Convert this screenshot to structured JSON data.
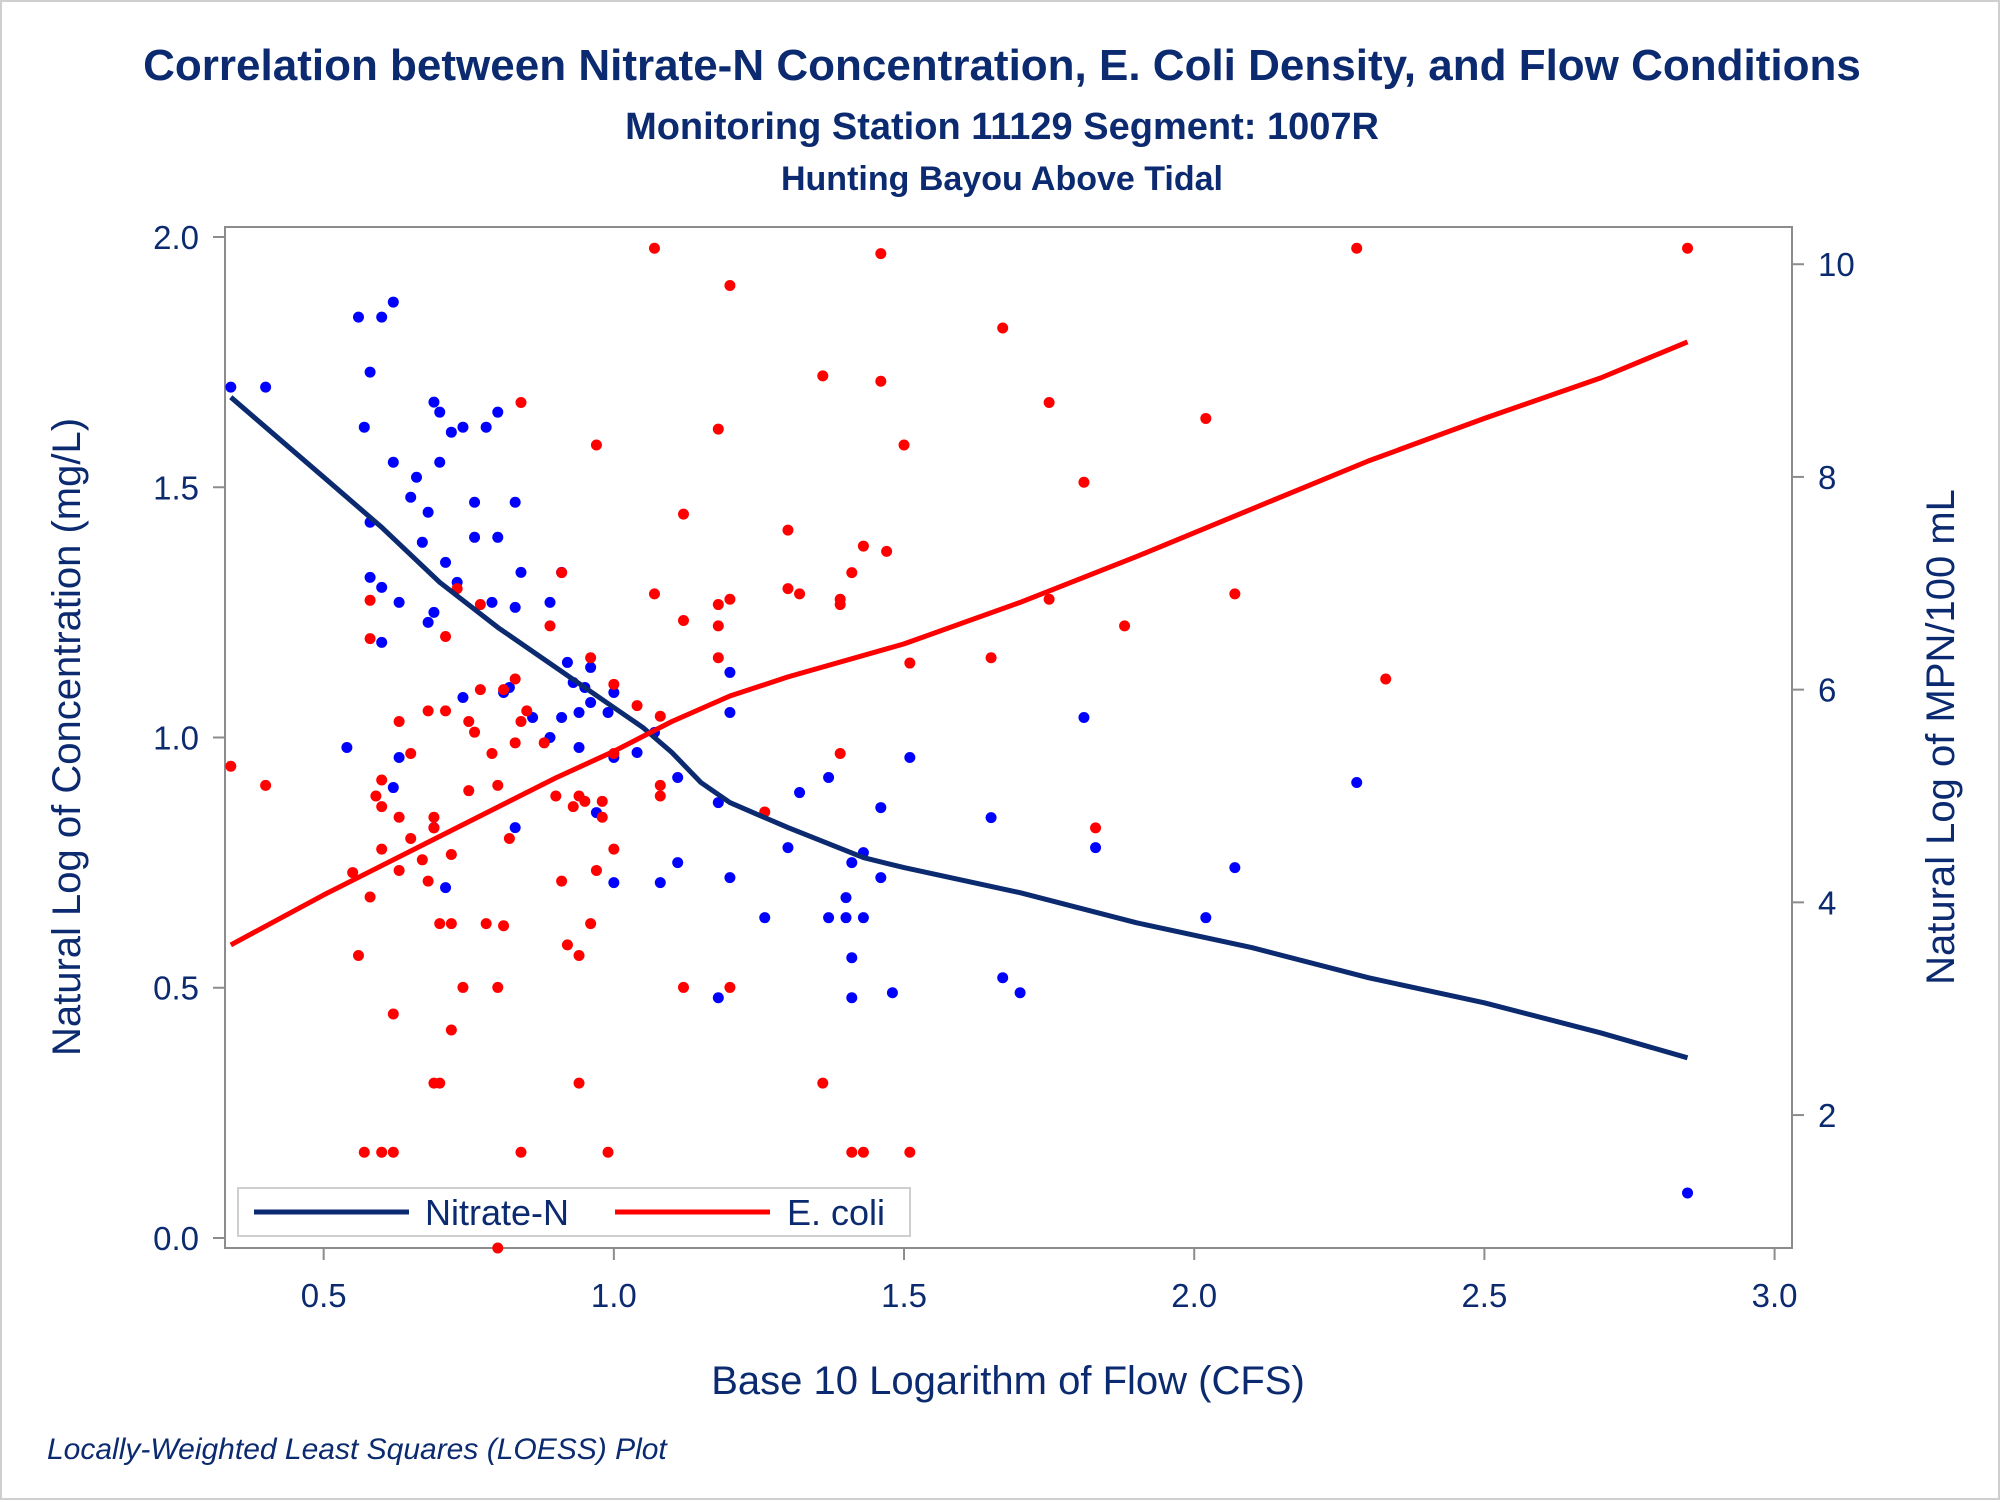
{
  "chart_data": {
    "type": "scatter",
    "title": "Correlation between Nitrate-N Concentration, E. Coli Density, and Flow Conditions",
    "subtitle": "Monitoring Station 11129 Segment: 1007R",
    "subtitle2": "Hunting Bayou Above Tidal",
    "xlabel": "Base 10 Logarithm of Flow (CFS)",
    "ylabel_left": "Natural Log of Concentration (mg/L)",
    "ylabel_right": "Natural Log of MPN/100 mL",
    "footnote": "Locally-Weighted Least Squares (LOESS) Plot",
    "xlim": [
      0.33,
      3.03
    ],
    "ylim_left": [
      -0.02,
      2.02
    ],
    "ylim_right": [
      0.75,
      10.35
    ],
    "x_ticks": [
      "0.5",
      "1.0",
      "1.5",
      "2.0",
      "2.5",
      "3.0"
    ],
    "y_left_ticks": [
      "0.0",
      "0.5",
      "1.0",
      "1.5",
      "2.0"
    ],
    "y_right_ticks": [
      "2",
      "4",
      "6",
      "8",
      "10"
    ],
    "legend_position": "bottom-left",
    "grid": false,
    "series": [
      {
        "name": "Nitrate-N",
        "axis": "left",
        "color": "#0000ff",
        "points": [
          [
            0.34,
            1.7
          ],
          [
            0.4,
            1.7
          ],
          [
            0.54,
            0.98
          ],
          [
            0.56,
            1.84
          ],
          [
            0.57,
            1.62
          ],
          [
            0.58,
            1.73
          ],
          [
            0.58,
            1.43
          ],
          [
            0.58,
            1.32
          ],
          [
            0.6,
            1.84
          ],
          [
            0.6,
            1.3
          ],
          [
            0.6,
            1.19
          ],
          [
            0.62,
            1.87
          ],
          [
            0.62,
            1.55
          ],
          [
            0.63,
            1.27
          ],
          [
            0.63,
            0.96
          ],
          [
            0.62,
            0.9
          ],
          [
            0.65,
            1.48
          ],
          [
            0.66,
            1.52
          ],
          [
            0.67,
            1.39
          ],
          [
            0.68,
            1.45
          ],
          [
            0.68,
            1.23
          ],
          [
            0.69,
            1.67
          ],
          [
            0.69,
            1.25
          ],
          [
            0.69,
            0.82
          ],
          [
            0.7,
            1.65
          ],
          [
            0.7,
            1.55
          ],
          [
            0.71,
            1.35
          ],
          [
            0.71,
            0.7
          ],
          [
            0.72,
            1.61
          ],
          [
            0.73,
            1.31
          ],
          [
            0.74,
            1.62
          ],
          [
            0.74,
            1.08
          ],
          [
            0.76,
            1.47
          ],
          [
            0.76,
            1.4
          ],
          [
            0.78,
            1.62
          ],
          [
            0.79,
            1.27
          ],
          [
            0.8,
            1.65
          ],
          [
            0.8,
            1.4
          ],
          [
            0.81,
            1.09
          ],
          [
            0.82,
            1.1
          ],
          [
            0.83,
            1.47
          ],
          [
            0.83,
            1.26
          ],
          [
            0.83,
            0.82
          ],
          [
            0.84,
            1.33
          ],
          [
            0.86,
            1.04
          ],
          [
            0.89,
            1.27
          ],
          [
            0.89,
            1.0
          ],
          [
            0.91,
            1.33
          ],
          [
            0.91,
            1.04
          ],
          [
            0.92,
            1.15
          ],
          [
            0.93,
            1.11
          ],
          [
            0.94,
            1.05
          ],
          [
            0.94,
            0.98
          ],
          [
            0.95,
            1.1
          ],
          [
            0.96,
            1.14
          ],
          [
            0.96,
            1.07
          ],
          [
            0.97,
            0.85
          ],
          [
            0.99,
            1.05
          ],
          [
            1.0,
            1.09
          ],
          [
            1.0,
            0.96
          ],
          [
            1.0,
            0.71
          ],
          [
            1.04,
            0.97
          ],
          [
            1.07,
            1.01
          ],
          [
            1.08,
            0.71
          ],
          [
            1.11,
            0.92
          ],
          [
            1.11,
            0.75
          ],
          [
            1.18,
            0.87
          ],
          [
            1.18,
            0.48
          ],
          [
            1.2,
            1.13
          ],
          [
            1.2,
            1.05
          ],
          [
            1.2,
            0.72
          ],
          [
            1.26,
            0.64
          ],
          [
            1.3,
            0.78
          ],
          [
            1.32,
            0.89
          ],
          [
            1.37,
            0.92
          ],
          [
            1.37,
            0.64
          ],
          [
            1.4,
            0.68
          ],
          [
            1.4,
            0.64
          ],
          [
            1.41,
            0.75
          ],
          [
            1.41,
            0.56
          ],
          [
            1.41,
            0.48
          ],
          [
            1.43,
            0.77
          ],
          [
            1.43,
            0.64
          ],
          [
            1.46,
            0.86
          ],
          [
            1.46,
            0.72
          ],
          [
            1.48,
            0.49
          ],
          [
            1.51,
            0.96
          ],
          [
            1.65,
            0.84
          ],
          [
            1.67,
            0.52
          ],
          [
            1.7,
            0.49
          ],
          [
            1.81,
            1.04
          ],
          [
            1.83,
            0.78
          ],
          [
            2.02,
            0.64
          ],
          [
            2.07,
            0.74
          ],
          [
            2.28,
            0.91
          ],
          [
            2.85,
            0.09
          ]
        ]
      },
      {
        "name": "E. coli",
        "axis": "right",
        "color": "#ff0000",
        "points": [
          [
            0.34,
            5.28
          ],
          [
            0.4,
            5.1
          ],
          [
            0.55,
            4.28
          ],
          [
            0.56,
            3.5
          ],
          [
            0.57,
            1.65
          ],
          [
            0.58,
            6.84
          ],
          [
            0.58,
            6.48
          ],
          [
            0.58,
            4.05
          ],
          [
            0.59,
            5.0
          ],
          [
            0.6,
            4.9
          ],
          [
            0.6,
            5.15
          ],
          [
            0.6,
            4.5
          ],
          [
            0.6,
            1.65
          ],
          [
            0.62,
            2.95
          ],
          [
            0.62,
            1.65
          ],
          [
            0.63,
            4.8
          ],
          [
            0.63,
            4.3
          ],
          [
            0.63,
            5.7
          ],
          [
            0.65,
            4.6
          ],
          [
            0.65,
            5.4
          ],
          [
            0.67,
            4.4
          ],
          [
            0.68,
            5.8
          ],
          [
            0.68,
            4.2
          ],
          [
            0.69,
            4.8
          ],
          [
            0.69,
            4.7
          ],
          [
            0.69,
            2.3
          ],
          [
            0.7,
            3.8
          ],
          [
            0.7,
            2.3
          ],
          [
            0.71,
            6.5
          ],
          [
            0.71,
            5.8
          ],
          [
            0.72,
            2.8
          ],
          [
            0.72,
            3.8
          ],
          [
            0.72,
            4.45
          ],
          [
            0.73,
            6.95
          ],
          [
            0.74,
            3.2
          ],
          [
            0.75,
            5.7
          ],
          [
            0.75,
            5.05
          ],
          [
            0.76,
            5.6
          ],
          [
            0.77,
            6.8
          ],
          [
            0.77,
            6.0
          ],
          [
            0.78,
            3.8
          ],
          [
            0.79,
            5.4
          ],
          [
            0.8,
            5.1
          ],
          [
            0.8,
            3.2
          ],
          [
            0.81,
            3.78
          ],
          [
            0.81,
            6.0
          ],
          [
            0.82,
            4.6
          ],
          [
            0.83,
            6.1
          ],
          [
            0.83,
            5.5
          ],
          [
            0.84,
            5.7
          ],
          [
            0.84,
            1.65
          ],
          [
            0.84,
            8.7
          ],
          [
            0.85,
            5.8
          ],
          [
            0.88,
            5.5
          ],
          [
            0.89,
            6.6
          ],
          [
            0.9,
            5.0
          ],
          [
            0.91,
            7.1
          ],
          [
            0.91,
            4.2
          ],
          [
            0.92,
            3.6
          ],
          [
            0.93,
            4.9
          ],
          [
            0.94,
            5.0
          ],
          [
            0.94,
            3.5
          ],
          [
            0.94,
            2.3
          ],
          [
            0.95,
            4.95
          ],
          [
            0.96,
            3.8
          ],
          [
            0.96,
            6.3
          ],
          [
            0.97,
            4.3
          ],
          [
            0.97,
            8.3
          ],
          [
            0.98,
            4.95
          ],
          [
            0.98,
            4.8
          ],
          [
            0.99,
            1.65
          ],
          [
            1.0,
            6.05
          ],
          [
            1.0,
            5.4
          ],
          [
            1.0,
            4.5
          ],
          [
            1.04,
            5.85
          ],
          [
            1.07,
            10.15
          ],
          [
            1.07,
            6.9
          ],
          [
            1.08,
            5.75
          ],
          [
            1.08,
            5.1
          ],
          [
            1.08,
            5.0
          ],
          [
            1.12,
            7.65
          ],
          [
            1.12,
            6.65
          ],
          [
            1.12,
            3.2
          ],
          [
            1.18,
            8.45
          ],
          [
            1.18,
            6.8
          ],
          [
            1.18,
            6.6
          ],
          [
            1.18,
            6.3
          ],
          [
            1.2,
            9.8
          ],
          [
            1.2,
            6.85
          ],
          [
            1.2,
            3.2
          ],
          [
            1.26,
            4.85
          ],
          [
            1.3,
            7.5
          ],
          [
            1.3,
            6.95
          ],
          [
            1.32,
            6.9
          ],
          [
            1.36,
            8.95
          ],
          [
            1.36,
            2.3
          ],
          [
            1.39,
            6.85
          ],
          [
            1.39,
            6.8
          ],
          [
            1.39,
            5.4
          ],
          [
            1.41,
            7.1
          ],
          [
            1.41,
            1.65
          ],
          [
            1.43,
            7.35
          ],
          [
            1.43,
            1.65
          ],
          [
            1.46,
            10.1
          ],
          [
            1.46,
            8.9
          ],
          [
            1.47,
            7.3
          ],
          [
            1.5,
            8.3
          ],
          [
            1.51,
            6.25
          ],
          [
            1.51,
            1.65
          ],
          [
            1.65,
            6.3
          ],
          [
            1.67,
            9.4
          ],
          [
            1.75,
            8.7
          ],
          [
            1.75,
            6.85
          ],
          [
            1.81,
            7.95
          ],
          [
            1.83,
            4.7
          ],
          [
            1.88,
            6.6
          ],
          [
            2.02,
            8.55
          ],
          [
            2.07,
            6.9
          ],
          [
            2.28,
            10.15
          ],
          [
            2.33,
            6.1
          ],
          [
            2.85,
            10.15
          ],
          [
            0.8,
            0.75
          ]
        ]
      }
    ],
    "fits": [
      {
        "name": "Nitrate-N",
        "axis": "left",
        "color": "#0b2a6f",
        "points": [
          [
            0.34,
            1.68
          ],
          [
            0.4,
            1.62
          ],
          [
            0.5,
            1.52
          ],
          [
            0.6,
            1.42
          ],
          [
            0.7,
            1.31
          ],
          [
            0.8,
            1.22
          ],
          [
            0.9,
            1.14
          ],
          [
            1.0,
            1.06
          ],
          [
            1.05,
            1.02
          ],
          [
            1.1,
            0.97
          ],
          [
            1.15,
            0.91
          ],
          [
            1.2,
            0.87
          ],
          [
            1.3,
            0.82
          ],
          [
            1.43,
            0.76
          ],
          [
            1.5,
            0.74
          ],
          [
            1.7,
            0.69
          ],
          [
            1.9,
            0.63
          ],
          [
            2.1,
            0.58
          ],
          [
            2.3,
            0.52
          ],
          [
            2.5,
            0.47
          ],
          [
            2.7,
            0.41
          ],
          [
            2.85,
            0.36
          ]
        ]
      },
      {
        "name": "E. coli",
        "axis": "right",
        "color": "#ff0000",
        "points": [
          [
            0.34,
            3.6
          ],
          [
            0.5,
            4.07
          ],
          [
            0.7,
            4.62
          ],
          [
            0.9,
            5.17
          ],
          [
            1.0,
            5.42
          ],
          [
            1.1,
            5.7
          ],
          [
            1.2,
            5.94
          ],
          [
            1.3,
            6.12
          ],
          [
            1.5,
            6.43
          ],
          [
            1.7,
            6.82
          ],
          [
            1.9,
            7.25
          ],
          [
            2.1,
            7.7
          ],
          [
            2.3,
            8.15
          ],
          [
            2.5,
            8.55
          ],
          [
            2.7,
            8.93
          ],
          [
            2.85,
            9.27
          ]
        ]
      }
    ]
  }
}
